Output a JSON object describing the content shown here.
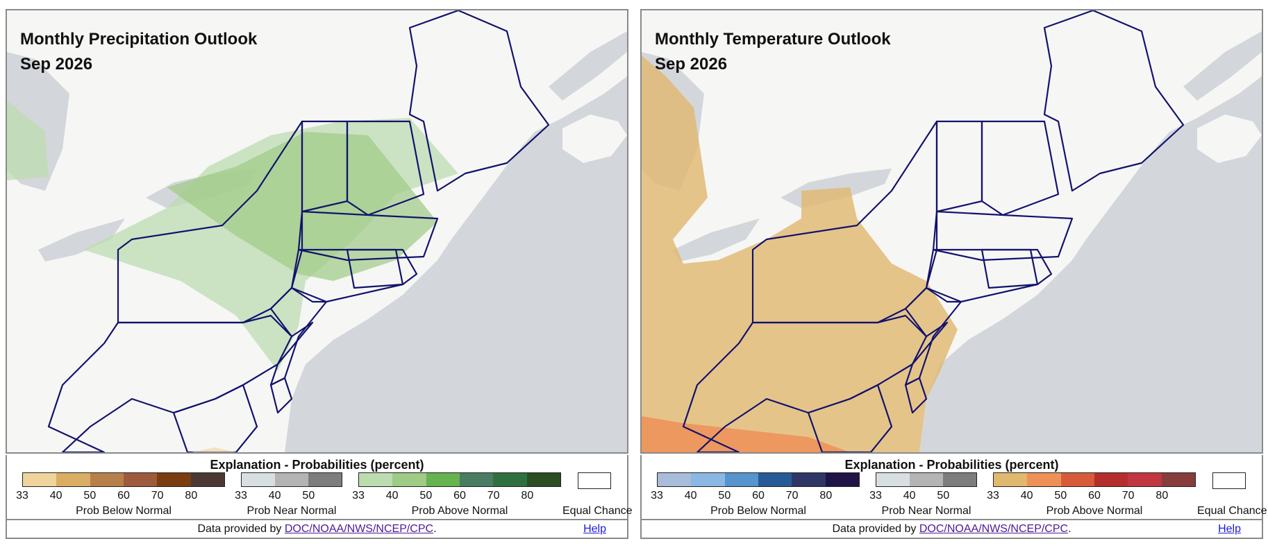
{
  "panels": [
    {
      "title": "Monthly Precipitation Outlook",
      "subtitle": "Sep 2026",
      "legend": {
        "heading": "Explanation - Probabilities (percent)",
        "below": {
          "label": "Prob Below Normal",
          "ticks": [
            "33",
            "40",
            "50",
            "60",
            "70",
            "80"
          ],
          "colors": [
            "#efd59c",
            "#d9ae63",
            "#b7804b",
            "#9e5a3c",
            "#7a3d10",
            "#4b3832"
          ]
        },
        "near": {
          "label": "Prob Near Normal",
          "ticks": [
            "33",
            "40",
            "50"
          ],
          "colors": [
            "#d8dfe2",
            "#b4b4b4",
            "#7f7c7c"
          ]
        },
        "above": {
          "label": "Prob Above Normal",
          "ticks": [
            "33",
            "40",
            "50",
            "60",
            "70",
            "80"
          ],
          "colors": [
            "#bcdcb0",
            "#9ecb85",
            "#66b34f",
            "#4a7c63",
            "#307040",
            "#2b4e22"
          ]
        },
        "equal_chance": "Equal Chance"
      },
      "footer": {
        "prefix": "Data provided by ",
        "link": "DOC/NOAA/NWS/NCEP/CPC",
        "suffix": ".",
        "help": "Help"
      }
    },
    {
      "title": "Monthly Temperature Outlook",
      "subtitle": "Sep 2026",
      "legend": {
        "heading": "Explanation - Probabilities (percent)",
        "below": {
          "label": "Prob Below Normal",
          "ticks": [
            "33",
            "40",
            "50",
            "60",
            "70",
            "80"
          ],
          "colors": [
            "#a9bcd9",
            "#8bb8e2",
            "#5594cc",
            "#275b97",
            "#2f3766",
            "#1f1347"
          ]
        },
        "near": {
          "label": "Prob Near Normal",
          "ticks": [
            "33",
            "40",
            "50"
          ],
          "colors": [
            "#d8dfe2",
            "#b4b4b4",
            "#7f7c7c"
          ]
        },
        "above": {
          "label": "Prob Above Normal",
          "ticks": [
            "33",
            "40",
            "50",
            "60",
            "70",
            "80"
          ],
          "colors": [
            "#e1b86f",
            "#ef9157",
            "#d75b3a",
            "#b62e2b",
            "#c13640",
            "#873c3e"
          ]
        },
        "equal_chance": "Equal Chance"
      },
      "footer": {
        "prefix": "Data provided by ",
        "link": "DOC/NOAA/NWS/NCEP/CPC",
        "suffix": ".",
        "help": "Help"
      }
    }
  ],
  "colors": {
    "ocean": "#d3d7db",
    "land": "#f6f6f5",
    "state_outline": "#12126e",
    "precip_above_33": "#bcdcb0",
    "precip_above_40": "#9ecb85",
    "temp_above_33": "#e1b86f",
    "temp_above_40": "#ef9157"
  }
}
